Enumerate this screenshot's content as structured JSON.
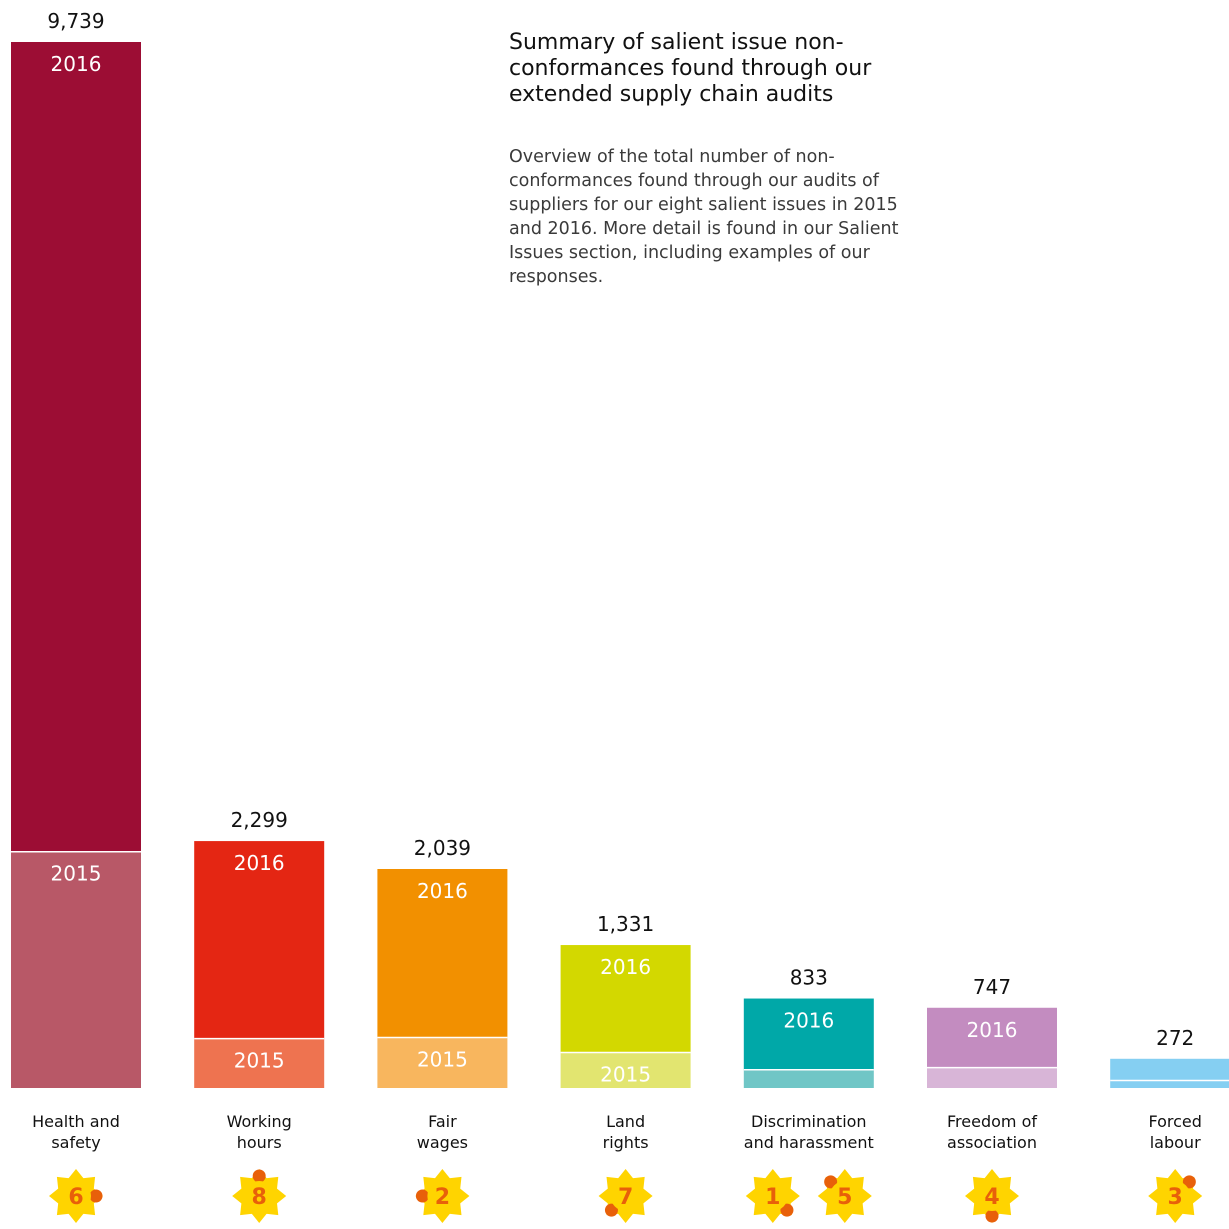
{
  "chart_data": {
    "type": "bar",
    "stacked": true,
    "title": "Summary of salient issue non-conformances found through our extended supply chain audits",
    "subtitle": "Overview of the total number of non-conformances found through our audits of suppliers for our eight salient issues in 2015 and 2016. More detail is found in our Salient Issues section, including examples of our responses.",
    "categories": [
      {
        "label": [
          "Health and",
          "safety"
        ],
        "issues": [
          "6"
        ],
        "total": 9739,
        "total_label": "9,739",
        "v2015": 2200,
        "v2016": 7539,
        "label_2015": "2015",
        "label_2016": "2016",
        "color_2016": "#9c0d34",
        "color_2015": "#b85867"
      },
      {
        "label": [
          "Working",
          "hours"
        ],
        "issues": [
          "8"
        ],
        "total": 2299,
        "total_label": "2,299",
        "v2015": 460,
        "v2016": 1839,
        "label_2015": "2015",
        "label_2016": "2016",
        "color_2016": "#e42613",
        "color_2015": "#ee7350"
      },
      {
        "label": [
          "Fair",
          "wages"
        ],
        "issues": [
          "2"
        ],
        "total": 2039,
        "total_label": "2,039",
        "v2015": 470,
        "v2016": 1569,
        "label_2015": "2015",
        "label_2016": "2016",
        "color_2016": "#f29000",
        "color_2015": "#f8b65e"
      },
      {
        "label": [
          "Land",
          "rights"
        ],
        "issues": [
          "7"
        ],
        "total": 1331,
        "total_label": "1,331",
        "v2015": 330,
        "v2016": 1001,
        "label_2015": "2015",
        "label_2016": "2016",
        "color_2016": "#d3d800",
        "color_2015": "#e2e570"
      },
      {
        "label": [
          "Discrimination",
          "and harassment"
        ],
        "issues": [
          "1",
          "5"
        ],
        "total": 833,
        "total_label": "833",
        "v2015": 170,
        "v2016": 663,
        "label_2015": "",
        "label_2016": "2016",
        "color_2016": "#00a8a8",
        "color_2015": "#70c6c6"
      },
      {
        "label": [
          "Freedom of",
          "association"
        ],
        "issues": [
          "4"
        ],
        "total": 747,
        "total_label": "747",
        "v2015": 190,
        "v2016": 557,
        "label_2015": "",
        "label_2016": "2016",
        "color_2016": "#c38cc0",
        "color_2015": "#d8b5d7"
      },
      {
        "label": [
          "Forced",
          "labour"
        ],
        "issues": [
          "3"
        ],
        "total": 272,
        "total_label": "272",
        "v2015": 70,
        "v2016": 202,
        "label_2015": "",
        "label_2016": "",
        "color_2016": "#85cff2",
        "color_2015": "#85cff2"
      }
    ],
    "ylim": [
      0,
      9739
    ],
    "grid": false,
    "legend": "none"
  },
  "colors": {
    "text": "#111111",
    "icon_petal": "#ffd400",
    "icon_accent": "#e8600a",
    "icon_number": "#e8600a"
  },
  "icons": "sunflower-issue-icon"
}
